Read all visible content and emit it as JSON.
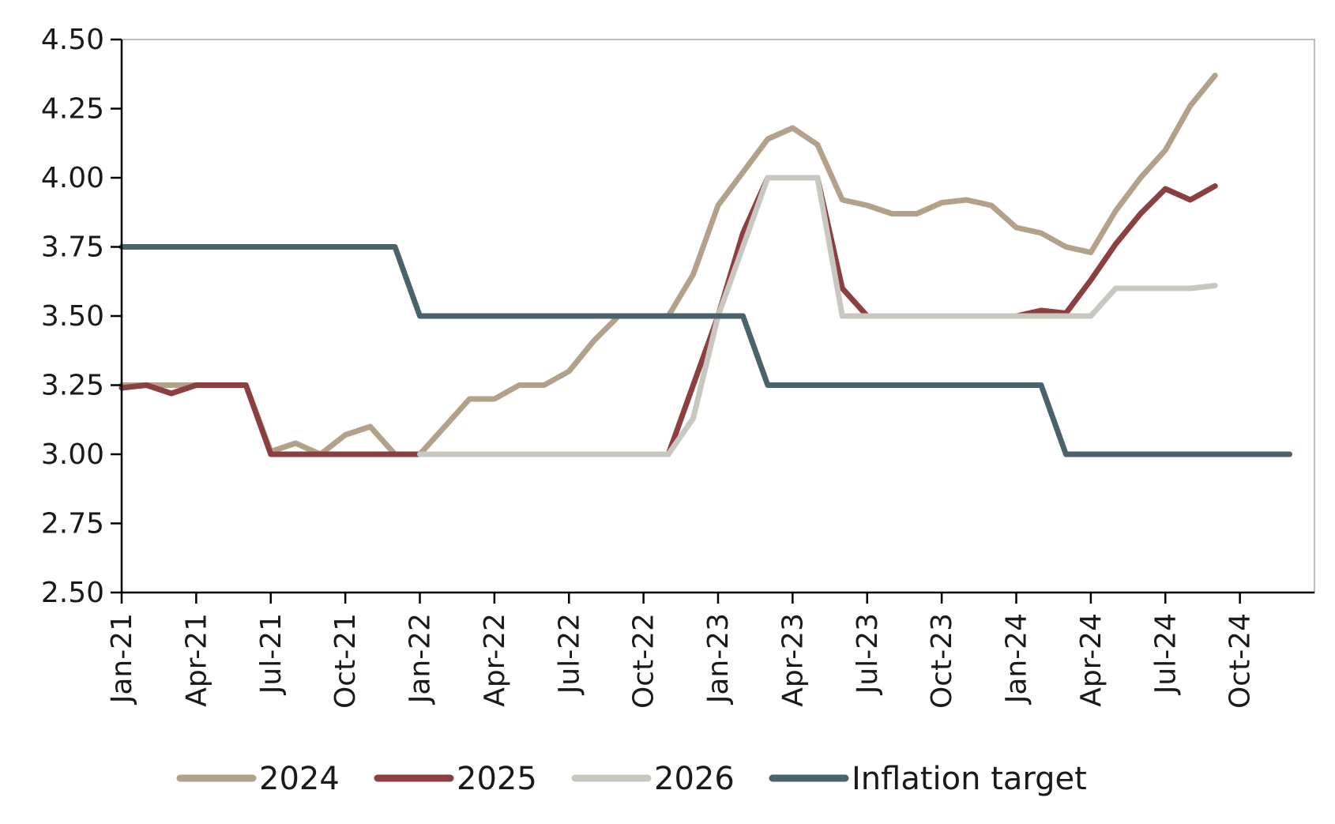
{
  "chart_data": {
    "type": "line",
    "title": "",
    "xlabel": "",
    "ylabel": "",
    "ylim": [
      2.5,
      4.5
    ],
    "x_range": [
      "2021-01",
      "2024-12"
    ],
    "y_ticks": [
      "2.50",
      "2.75",
      "3.00",
      "3.25",
      "3.50",
      "3.75",
      "4.00",
      "4.25",
      "4.50"
    ],
    "x_ticks": [
      {
        "date": "2021-01",
        "label": "Jan-21"
      },
      {
        "date": "2021-04",
        "label": "Apr-21"
      },
      {
        "date": "2021-07",
        "label": "Jul-21"
      },
      {
        "date": "2021-10",
        "label": "Oct-21"
      },
      {
        "date": "2022-01",
        "label": "Jan-22"
      },
      {
        "date": "2022-04",
        "label": "Apr-22"
      },
      {
        "date": "2022-07",
        "label": "Jul-22"
      },
      {
        "date": "2022-10",
        "label": "Oct-22"
      },
      {
        "date": "2023-01",
        "label": "Jan-23"
      },
      {
        "date": "2023-04",
        "label": "Apr-23"
      },
      {
        "date": "2023-07",
        "label": "Jul-23"
      },
      {
        "date": "2023-10",
        "label": "Oct-23"
      },
      {
        "date": "2024-01",
        "label": "Jan-24"
      },
      {
        "date": "2024-04",
        "label": "Apr-24"
      },
      {
        "date": "2024-07",
        "label": "Jul-24"
      },
      {
        "date": "2024-10",
        "label": "Oct-24"
      }
    ],
    "grid": false,
    "legend_position": "bottom",
    "series": [
      {
        "name": "2024",
        "color": "#b3a18a",
        "points": [
          [
            "2021-01",
            3.25
          ],
          [
            "2021-02",
            3.25
          ],
          [
            "2021-03",
            3.25
          ],
          [
            "2021-04",
            3.25
          ],
          [
            "2021-05",
            3.25
          ],
          [
            "2021-06",
            3.25
          ],
          [
            "2021-07",
            3.01
          ],
          [
            "2021-08",
            3.04
          ],
          [
            "2021-09",
            3.0
          ],
          [
            "2021-10",
            3.07
          ],
          [
            "2021-11",
            3.1
          ],
          [
            "2021-12",
            3.0
          ],
          [
            "2022-01",
            3.0
          ],
          [
            "2022-02",
            3.1
          ],
          [
            "2022-03",
            3.2
          ],
          [
            "2022-04",
            3.2
          ],
          [
            "2022-05",
            3.25
          ],
          [
            "2022-06",
            3.25
          ],
          [
            "2022-07",
            3.3
          ],
          [
            "2022-08",
            3.41
          ],
          [
            "2022-09",
            3.5
          ],
          [
            "2022-10",
            3.5
          ],
          [
            "2022-11",
            3.5
          ],
          [
            "2022-12",
            3.65
          ],
          [
            "2023-01",
            3.9
          ],
          [
            "2023-02",
            4.02
          ],
          [
            "2023-03",
            4.14
          ],
          [
            "2023-04",
            4.18
          ],
          [
            "2023-05",
            4.12
          ],
          [
            "2023-06",
            3.92
          ],
          [
            "2023-07",
            3.9
          ],
          [
            "2023-08",
            3.87
          ],
          [
            "2023-09",
            3.87
          ],
          [
            "2023-10",
            3.91
          ],
          [
            "2023-11",
            3.92
          ],
          [
            "2023-12",
            3.9
          ],
          [
            "2024-01",
            3.82
          ],
          [
            "2024-02",
            3.8
          ],
          [
            "2024-03",
            3.75
          ],
          [
            "2024-04",
            3.73
          ],
          [
            "2024-05",
            3.88
          ],
          [
            "2024-06",
            4.0
          ],
          [
            "2024-07",
            4.1
          ],
          [
            "2024-08",
            4.26
          ],
          [
            "2024-09",
            4.37
          ]
        ]
      },
      {
        "name": "2025",
        "color": "#8b3f3f",
        "points": [
          [
            "2021-01",
            3.24
          ],
          [
            "2021-02",
            3.25
          ],
          [
            "2021-03",
            3.22
          ],
          [
            "2021-04",
            3.25
          ],
          [
            "2021-05",
            3.25
          ],
          [
            "2021-06",
            3.25
          ],
          [
            "2021-07",
            3.0
          ],
          [
            "2021-08",
            3.0
          ],
          [
            "2021-09",
            3.0
          ],
          [
            "2021-10",
            3.0
          ],
          [
            "2021-11",
            3.0
          ],
          [
            "2021-12",
            3.0
          ],
          [
            "2022-01",
            3.0
          ],
          [
            "2022-02",
            3.0
          ],
          [
            "2022-03",
            3.0
          ],
          [
            "2022-04",
            3.0
          ],
          [
            "2022-05",
            3.0
          ],
          [
            "2022-06",
            3.0
          ],
          [
            "2022-07",
            3.0
          ],
          [
            "2022-08",
            3.0
          ],
          [
            "2022-09",
            3.0
          ],
          [
            "2022-10",
            3.0
          ],
          [
            "2022-11",
            3.0
          ],
          [
            "2022-12",
            3.25
          ],
          [
            "2023-01",
            3.5
          ],
          [
            "2023-02",
            3.8
          ],
          [
            "2023-03",
            4.0
          ],
          [
            "2023-04",
            4.0
          ],
          [
            "2023-05",
            4.0
          ],
          [
            "2023-06",
            3.6
          ],
          [
            "2023-07",
            3.5
          ],
          [
            "2023-08",
            3.5
          ],
          [
            "2023-09",
            3.5
          ],
          [
            "2023-10",
            3.5
          ],
          [
            "2023-11",
            3.5
          ],
          [
            "2023-12",
            3.5
          ],
          [
            "2024-01",
            3.5
          ],
          [
            "2024-02",
            3.52
          ],
          [
            "2024-03",
            3.51
          ],
          [
            "2024-04",
            3.63
          ],
          [
            "2024-05",
            3.76
          ],
          [
            "2024-06",
            3.87
          ],
          [
            "2024-07",
            3.96
          ],
          [
            "2024-08",
            3.92
          ],
          [
            "2024-09",
            3.97
          ]
        ]
      },
      {
        "name": "2026",
        "color": "#c8c8c0",
        "points": [
          [
            "2022-01",
            3.0
          ],
          [
            "2022-02",
            3.0
          ],
          [
            "2022-03",
            3.0
          ],
          [
            "2022-04",
            3.0
          ],
          [
            "2022-05",
            3.0
          ],
          [
            "2022-06",
            3.0
          ],
          [
            "2022-07",
            3.0
          ],
          [
            "2022-08",
            3.0
          ],
          [
            "2022-09",
            3.0
          ],
          [
            "2022-10",
            3.0
          ],
          [
            "2022-11",
            3.0
          ],
          [
            "2022-12",
            3.13
          ],
          [
            "2023-01",
            3.5
          ],
          [
            "2023-02",
            3.75
          ],
          [
            "2023-03",
            4.0
          ],
          [
            "2023-04",
            4.0
          ],
          [
            "2023-05",
            4.0
          ],
          [
            "2023-06",
            3.5
          ],
          [
            "2023-07",
            3.5
          ],
          [
            "2023-08",
            3.5
          ],
          [
            "2023-09",
            3.5
          ],
          [
            "2023-10",
            3.5
          ],
          [
            "2023-11",
            3.5
          ],
          [
            "2023-12",
            3.5
          ],
          [
            "2024-01",
            3.5
          ],
          [
            "2024-02",
            3.5
          ],
          [
            "2024-03",
            3.5
          ],
          [
            "2024-04",
            3.5
          ],
          [
            "2024-05",
            3.6
          ],
          [
            "2024-06",
            3.6
          ],
          [
            "2024-07",
            3.6
          ],
          [
            "2024-08",
            3.6
          ],
          [
            "2024-09",
            3.61
          ]
        ]
      },
      {
        "name": "Inflation target",
        "color": "#4a626c",
        "points": [
          [
            "2021-01",
            3.75
          ],
          [
            "2021-12",
            3.75
          ],
          [
            "2022-01",
            3.5
          ],
          [
            "2023-02",
            3.5
          ],
          [
            "2023-03",
            3.25
          ],
          [
            "2024-02",
            3.25
          ],
          [
            "2024-03",
            3.0
          ],
          [
            "2024-12",
            3.0
          ]
        ]
      }
    ]
  }
}
